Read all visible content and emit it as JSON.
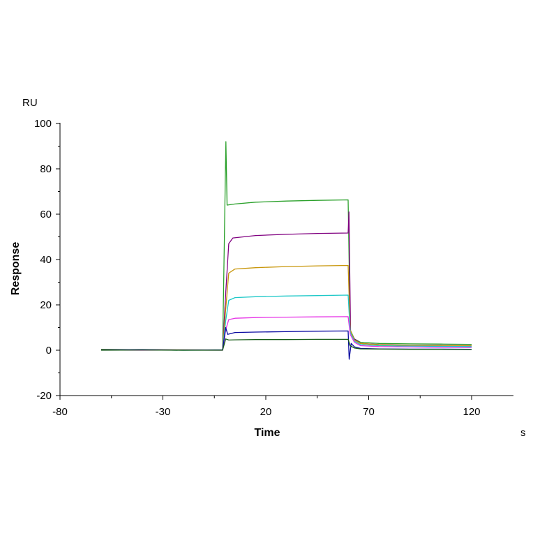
{
  "chart_data": {
    "type": "line",
    "title": "",
    "xlabel": "Time",
    "ylabel": "Response",
    "x_unit": "s",
    "y_unit": "RU",
    "xlim": [
      -80,
      140
    ],
    "ylim": [
      -20,
      100
    ],
    "x_ticks": [
      -80,
      -30,
      20,
      70,
      120
    ],
    "y_ticks": [
      -20,
      0,
      20,
      40,
      60,
      80,
      100
    ],
    "grid": false,
    "legend": "none",
    "injection_start": 0,
    "injection_end": 60,
    "series": [
      {
        "color": "#2aa02a",
        "baseline": 0.4,
        "spike": 92,
        "points": [
          [
            -60,
            0.4
          ],
          [
            -40,
            0.2
          ],
          [
            -20,
            0
          ],
          [
            -1,
            0.2
          ],
          [
            0.6,
            92
          ],
          [
            1.2,
            64
          ],
          [
            5,
            64.5
          ],
          [
            15,
            65.3
          ],
          [
            30,
            65.8
          ],
          [
            45,
            66.1
          ],
          [
            60,
            66.3
          ],
          [
            61,
            9
          ],
          [
            63,
            5
          ],
          [
            66,
            3.5
          ],
          [
            75,
            3
          ],
          [
            90,
            2.8
          ],
          [
            105,
            2.7
          ],
          [
            120,
            2.6
          ]
        ]
      },
      {
        "color": "#800080",
        "baseline": 0.2,
        "peak": 61,
        "points": [
          [
            -60,
            0.2
          ],
          [
            -40,
            0.3
          ],
          [
            -20,
            0.1
          ],
          [
            -1,
            0.1
          ],
          [
            0.5,
            25
          ],
          [
            2,
            47
          ],
          [
            4,
            49.5
          ],
          [
            15,
            50.6
          ],
          [
            30,
            51.1
          ],
          [
            45,
            51.5
          ],
          [
            60,
            51.7
          ],
          [
            60.4,
            61
          ],
          [
            61.2,
            8
          ],
          [
            63,
            5
          ],
          [
            66,
            3
          ],
          [
            75,
            2.5
          ],
          [
            90,
            2.2
          ],
          [
            105,
            2.1
          ],
          [
            120,
            2
          ]
        ]
      },
      {
        "color": "#c8960a",
        "baseline": 0.2,
        "points": [
          [
            -60,
            0.2
          ],
          [
            -40,
            0.1
          ],
          [
            -20,
            0.2
          ],
          [
            -1,
            0.1
          ],
          [
            0.5,
            18
          ],
          [
            2,
            34
          ],
          [
            5,
            35.8
          ],
          [
            15,
            36.4
          ],
          [
            30,
            36.9
          ],
          [
            45,
            37.2
          ],
          [
            60,
            37.4
          ],
          [
            61,
            9
          ],
          [
            63,
            4.5
          ],
          [
            66,
            3
          ],
          [
            75,
            2.4
          ],
          [
            90,
            2.1
          ],
          [
            105,
            2
          ],
          [
            120,
            1.9
          ]
        ]
      },
      {
        "color": "#1ec8c8",
        "baseline": 0.1,
        "points": [
          [
            -60,
            0.1
          ],
          [
            -40,
            0.2
          ],
          [
            -20,
            0
          ],
          [
            -1,
            0.1
          ],
          [
            0.5,
            13
          ],
          [
            2,
            22
          ],
          [
            5,
            23.2
          ],
          [
            15,
            23.6
          ],
          [
            30,
            23.9
          ],
          [
            45,
            24.1
          ],
          [
            60,
            24.3
          ],
          [
            61,
            8
          ],
          [
            63,
            4
          ],
          [
            66,
            2.5
          ],
          [
            75,
            2
          ],
          [
            90,
            1.8
          ],
          [
            105,
            1.7
          ],
          [
            120,
            1.6
          ]
        ]
      },
      {
        "color": "#e632e6",
        "baseline": 0.1,
        "points": [
          [
            -60,
            0.1
          ],
          [
            -40,
            0
          ],
          [
            -20,
            0.1
          ],
          [
            -1,
            0
          ],
          [
            0.5,
            9
          ],
          [
            2,
            13.5
          ],
          [
            5,
            14.1
          ],
          [
            15,
            14.4
          ],
          [
            30,
            14.6
          ],
          [
            45,
            14.7
          ],
          [
            60,
            14.8
          ],
          [
            61,
            7
          ],
          [
            63,
            3.5
          ],
          [
            66,
            2
          ],
          [
            75,
            1.6
          ],
          [
            90,
            1.4
          ],
          [
            105,
            1.3
          ],
          [
            120,
            1.2
          ]
        ]
      },
      {
        "color": "#0a0aa0",
        "baseline": 0.1,
        "points": [
          [
            -60,
            0.1
          ],
          [
            -40,
            0.2
          ],
          [
            -20,
            0.1
          ],
          [
            -1,
            0.1
          ],
          [
            0.5,
            10
          ],
          [
            1.5,
            7
          ],
          [
            5,
            7.8
          ],
          [
            15,
            8
          ],
          [
            30,
            8.2
          ],
          [
            45,
            8.4
          ],
          [
            60,
            8.5
          ],
          [
            60.5,
            -4
          ],
          [
            61.5,
            3
          ],
          [
            63,
            1.5
          ],
          [
            66,
            0.8
          ],
          [
            75,
            0.6
          ],
          [
            90,
            0.5
          ],
          [
            105,
            0.5
          ],
          [
            120,
            0.4
          ]
        ]
      },
      {
        "color": "#145a14",
        "baseline": 0,
        "points": [
          [
            -60,
            0
          ],
          [
            -40,
            0.1
          ],
          [
            -20,
            0
          ],
          [
            -1,
            0
          ],
          [
            0.5,
            5
          ],
          [
            2,
            4.5
          ],
          [
            5,
            4.6
          ],
          [
            15,
            4.7
          ],
          [
            30,
            4.7
          ],
          [
            45,
            4.8
          ],
          [
            60,
            4.8
          ],
          [
            61,
            2
          ],
          [
            63,
            1
          ],
          [
            66,
            0.6
          ],
          [
            75,
            0.5
          ],
          [
            90,
            0.4
          ],
          [
            105,
            0.4
          ],
          [
            120,
            0.3
          ]
        ]
      }
    ]
  }
}
